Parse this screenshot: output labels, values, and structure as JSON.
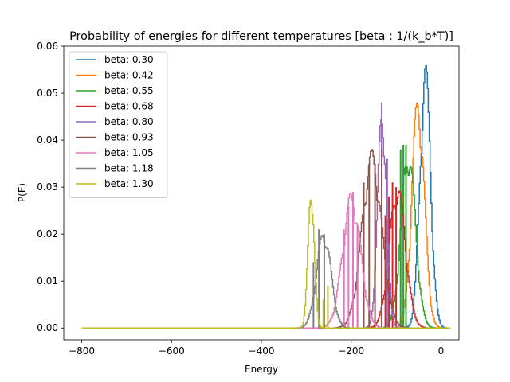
{
  "chart_data": {
    "type": "line",
    "title": "Probability of energies for different temperatures [beta : 1/(k_b*T)]",
    "xlabel": "Energy",
    "ylabel": "P(E)",
    "xlim": [
      -840,
      40
    ],
    "ylim": [
      -0.0025,
      0.06
    ],
    "xticks": [
      -800,
      -600,
      -400,
      -200,
      0
    ],
    "xtick_labels": [
      "−800",
      "−600",
      "−400",
      "−200",
      "0"
    ],
    "yticks": [
      0.0,
      0.01,
      0.02,
      0.03,
      0.04,
      0.05,
      0.06
    ],
    "ytick_labels": [
      "0.00",
      "0.01",
      "0.02",
      "0.03",
      "0.04",
      "0.05",
      "0.06"
    ],
    "grid": false,
    "legend_position": "upper-left",
    "x_range": [
      -800,
      20
    ],
    "series": [
      {
        "name": "beta: 0.30",
        "color": "#1f77b4",
        "peak_energy": -36,
        "peak_p": 0.057,
        "width": 12,
        "combs": []
      },
      {
        "name": "beta: 0.42",
        "color": "#ff7f0e",
        "peak_energy": -52,
        "peak_p": 0.05,
        "width": 14,
        "combs": []
      },
      {
        "name": "beta: 0.55",
        "color": "#2ca02c",
        "peak_energy": -74,
        "peak_p": 0.039,
        "width": 16,
        "combs": [
          {
            "energy": -90,
            "p": 0.038
          },
          {
            "energy": -84,
            "p": 0.039
          },
          {
            "energy": -78,
            "p": 0.039
          }
        ]
      },
      {
        "name": "beta: 0.68",
        "color": "#d62728",
        "peak_energy": -98,
        "peak_p": 0.031,
        "width": 18,
        "combs": [
          {
            "energy": -108,
            "p": 0.031
          },
          {
            "energy": -100,
            "p": 0.03
          },
          {
            "energy": -116,
            "p": 0.028
          },
          {
            "energy": -124,
            "p": 0.024
          }
        ]
      },
      {
        "name": "beta: 0.80",
        "color": "#9467bd",
        "peak_energy": -132,
        "peak_p": 0.048,
        "width": 10,
        "combs": [
          {
            "energy": -132,
            "p": 0.048
          },
          {
            "energy": -120,
            "p": 0.036
          }
        ]
      },
      {
        "name": "beta: 0.93",
        "color": "#8c564b",
        "peak_energy": -155,
        "peak_p": 0.038,
        "width": 22,
        "combs": [
          {
            "energy": -132,
            "p": 0.038
          },
          {
            "energy": -147,
            "p": 0.035
          },
          {
            "energy": -160,
            "p": 0.035
          },
          {
            "energy": -172,
            "p": 0.031
          },
          {
            "energy": -186,
            "p": 0.021
          }
        ]
      },
      {
        "name": "beta: 1.05",
        "color": "#e377c2",
        "peak_energy": -200,
        "peak_p": 0.029,
        "width": 20,
        "combs": [
          {
            "energy": -196,
            "p": 0.029
          },
          {
            "energy": -206,
            "p": 0.026
          },
          {
            "energy": -216,
            "p": 0.021
          },
          {
            "energy": -186,
            "p": 0.022
          }
        ]
      },
      {
        "name": "beta: 1.18",
        "color": "#7f7f7f",
        "peak_energy": -262,
        "peak_p": 0.021,
        "width": 16,
        "combs": [
          {
            "energy": -272,
            "p": 0.021
          },
          {
            "energy": -260,
            "p": 0.02
          },
          {
            "energy": -284,
            "p": 0.014
          }
        ]
      },
      {
        "name": "beta: 1.30",
        "color": "#bcbd22",
        "peak_energy": -290,
        "peak_p": 0.031,
        "width": 7,
        "combs": [
          {
            "energy": -252,
            "p": 0.009
          },
          {
            "energy": -262,
            "p": 0.006
          }
        ]
      }
    ]
  }
}
